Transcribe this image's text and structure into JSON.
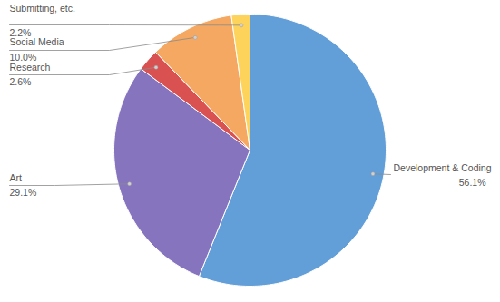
{
  "chart_data": {
    "type": "pie",
    "categories": [
      "Development & Coding",
      "Art",
      "Research",
      "Social Media",
      "Submitting, etc."
    ],
    "values": [
      56.1,
      29.1,
      2.6,
      10.0,
      2.2
    ],
    "value_labels": [
      "56.1%",
      "29.1%",
      "2.6%",
      "10.0%",
      "2.2%"
    ],
    "colors": [
      "#629ed8",
      "#8674be",
      "#da5152",
      "#f4a862",
      "#fdd35b"
    ],
    "data_labels": true
  }
}
